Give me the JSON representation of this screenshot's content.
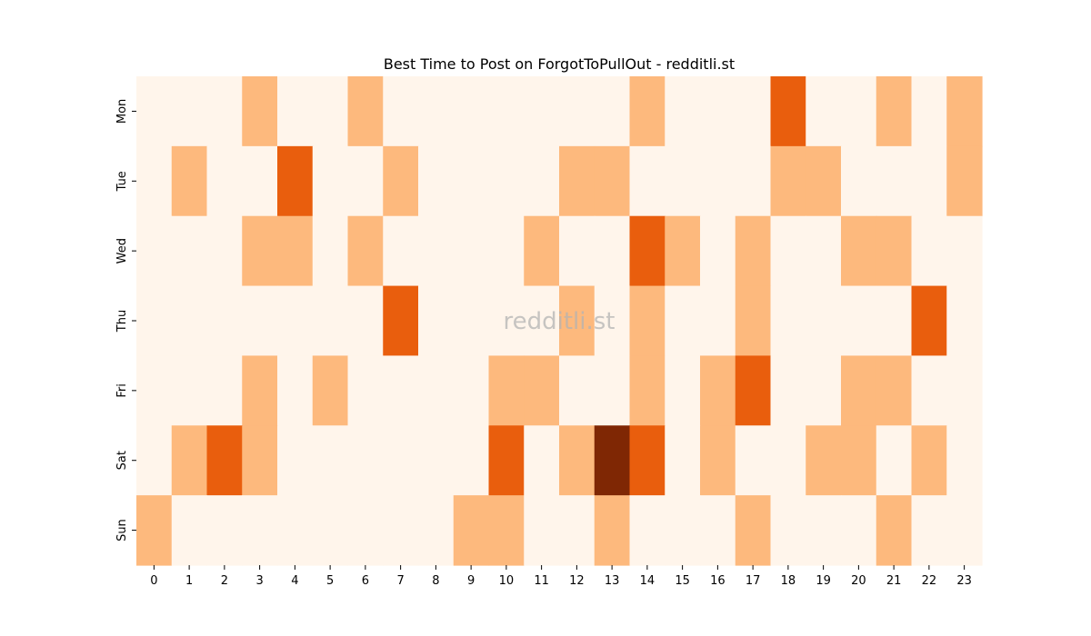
{
  "chart_data": {
    "type": "heatmap",
    "title": "Best Time to Post on ForgotToPullOut - redditli.st",
    "watermark": "redditli.st",
    "x_categories": [
      "0",
      "1",
      "2",
      "3",
      "4",
      "5",
      "6",
      "7",
      "8",
      "9",
      "10",
      "11",
      "12",
      "13",
      "14",
      "15",
      "16",
      "17",
      "18",
      "19",
      "20",
      "21",
      "22",
      "23"
    ],
    "y_categories": [
      "Mon",
      "Tue",
      "Wed",
      "Thu",
      "Fri",
      "Sat",
      "Sun"
    ],
    "values": [
      [
        0,
        0,
        0,
        1,
        0,
        0,
        1,
        0,
        0,
        0,
        0,
        0,
        0,
        0,
        1,
        0,
        0,
        0,
        2,
        0,
        0,
        1,
        0,
        1
      ],
      [
        0,
        1,
        0,
        0,
        2,
        0,
        0,
        1,
        0,
        0,
        0,
        0,
        1,
        1,
        0,
        0,
        0,
        0,
        1,
        1,
        0,
        0,
        0,
        1
      ],
      [
        0,
        0,
        0,
        1,
        1,
        0,
        1,
        0,
        0,
        0,
        0,
        1,
        0,
        0,
        2,
        1,
        0,
        1,
        0,
        0,
        1,
        1,
        0,
        0
      ],
      [
        0,
        0,
        0,
        0,
        0,
        0,
        0,
        2,
        0,
        0,
        0,
        0,
        1,
        0,
        1,
        0,
        0,
        1,
        0,
        0,
        0,
        0,
        2,
        0
      ],
      [
        0,
        0,
        0,
        1,
        0,
        1,
        0,
        0,
        0,
        0,
        1,
        1,
        0,
        0,
        1,
        0,
        1,
        2,
        0,
        0,
        1,
        1,
        0,
        0
      ],
      [
        0,
        1,
        2,
        1,
        0,
        0,
        0,
        0,
        0,
        0,
        2,
        0,
        1,
        3,
        2,
        0,
        1,
        0,
        0,
        1,
        1,
        0,
        1,
        0
      ],
      [
        1,
        0,
        0,
        0,
        0,
        0,
        0,
        0,
        0,
        1,
        1,
        0,
        0,
        1,
        0,
        0,
        0,
        1,
        0,
        0,
        0,
        1,
        0,
        0
      ]
    ],
    "color_scale": [
      "#fff5eb",
      "#fdb97d",
      "#e95e0d",
      "#7f2704"
    ],
    "grid": false,
    "legend": "none"
  }
}
